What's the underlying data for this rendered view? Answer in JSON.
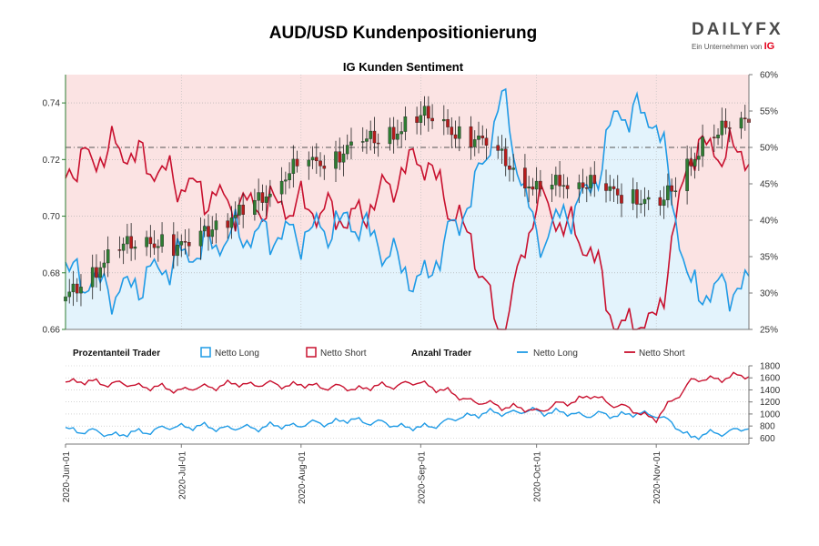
{
  "title": "AUD/USD Kundenpositionierung",
  "subtitle": "IG Kunden Sentiment",
  "logo": {
    "brand": "DAILYFX",
    "tagline": "Ein Unternehmen von",
    "parent": "IG"
  },
  "colors": {
    "long": "#1f9be6",
    "short": "#c8102e",
    "long_fill": "#e3f3fc",
    "short_fill": "#fbe3e3",
    "candle_up": "#2e7d32",
    "candle_down": "#b71c1c",
    "price_axis": "#2e7d32"
  },
  "legend": {
    "section1": "Prozentanteil Trader",
    "section1_long": "Netto Long",
    "section1_short": "Netto Short",
    "section2": "Anzahl Trader",
    "section2_long": "Netto Long",
    "section2_short": "Netto Short"
  },
  "chart_data": {
    "type": "line",
    "x_ticks": [
      "2020-Jun-01",
      "2020-Jul-01",
      "2020-Aug-01",
      "2020-Sep-01",
      "2020-Oct-01",
      "2020-Nov-01"
    ],
    "x_range": [
      "2020-06-01",
      "2020-11-25"
    ],
    "price_axis": {
      "ylim": [
        0.66,
        0.75
      ],
      "ticks": [
        "0.66",
        "0.68",
        "0.70",
        "0.72",
        "0.74"
      ]
    },
    "sentiment_axis": {
      "ylim": [
        25,
        60
      ],
      "ticks": [
        "25%",
        "30%",
        "35%",
        "40%",
        "45%",
        "50%",
        "55%",
        "60%"
      ],
      "reference": 50
    },
    "count_axis": {
      "ylim": [
        500,
        1800
      ],
      "ticks": [
        "600",
        "800",
        "1000",
        "1200",
        "1400",
        "1600",
        "1800"
      ]
    },
    "price_series": {
      "name": "AUD/USD",
      "x": [
        "2020-06-01",
        "2020-06-15",
        "2020-07-01",
        "2020-07-15",
        "2020-08-01",
        "2020-08-15",
        "2020-09-01",
        "2020-09-15",
        "2020-10-01",
        "2020-10-15",
        "2020-11-01",
        "2020-11-15",
        "2020-11-25"
      ],
      "close": [
        0.67,
        0.69,
        0.69,
        0.7,
        0.718,
        0.724,
        0.735,
        0.728,
        0.71,
        0.712,
        0.703,
        0.728,
        0.735
      ]
    },
    "sentiment_series": {
      "name": "Netto Long",
      "x": [
        "2020-06-01",
        "2020-06-15",
        "2020-07-01",
        "2020-07-15",
        "2020-08-01",
        "2020-08-15",
        "2020-09-01",
        "2020-09-15",
        "2020-09-22",
        "2020-10-01",
        "2020-10-15",
        "2020-10-22",
        "2020-11-01",
        "2020-11-10",
        "2020-11-25"
      ],
      "values": [
        33,
        30,
        35,
        38,
        38,
        40,
        31,
        44,
        57,
        37,
        44,
        55,
        54,
        30,
        31
      ]
    },
    "count_series": [
      {
        "name": "Netto Long",
        "x": [
          "2020-06-01",
          "2020-06-15",
          "2020-07-01",
          "2020-07-15",
          "2020-08-01",
          "2020-08-15",
          "2020-09-01",
          "2020-09-15",
          "2020-10-01",
          "2020-10-15",
          "2020-11-01",
          "2020-11-10",
          "2020-11-25"
        ],
        "values": [
          750,
          650,
          800,
          760,
          820,
          900,
          760,
          1000,
          1050,
          980,
          1000,
          620,
          760
        ]
      },
      {
        "name": "Netto Short",
        "x": [
          "2020-06-01",
          "2020-06-15",
          "2020-07-01",
          "2020-07-15",
          "2020-08-01",
          "2020-08-15",
          "2020-09-01",
          "2020-09-15",
          "2020-10-01",
          "2020-10-15",
          "2020-11-01",
          "2020-11-10",
          "2020-11-25"
        ],
        "values": [
          1550,
          1500,
          1400,
          1500,
          1480,
          1420,
          1520,
          1200,
          1050,
          1300,
          920,
          1550,
          1640
        ]
      }
    ]
  }
}
